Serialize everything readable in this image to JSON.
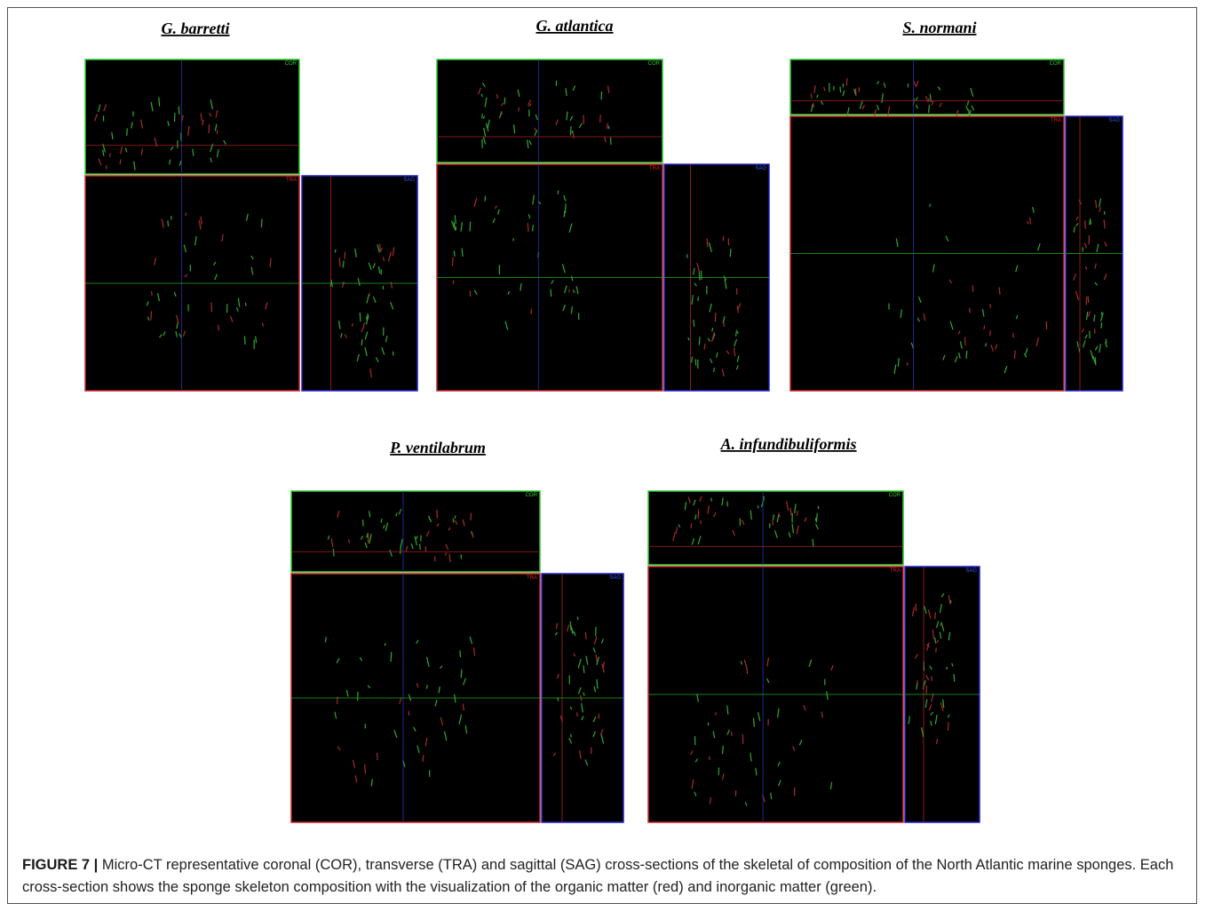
{
  "panels": [
    {
      "title": "G. barretti",
      "views": [
        "COR",
        "TRA",
        "SAG"
      ]
    },
    {
      "title": "G. atlantica",
      "views": [
        "COR",
        "TRA",
        "SAG"
      ]
    },
    {
      "title": "S. normani",
      "views": [
        "COR",
        "TRA",
        "SAG"
      ]
    },
    {
      "title": "P. ventilabrum",
      "views": [
        "COR",
        "TRA",
        "SAG"
      ]
    },
    {
      "title": "A. infundibuliformis",
      "views": [
        "COR",
        "TRA",
        "SAG"
      ]
    }
  ],
  "caption": {
    "label": "FIGURE 7 |",
    "text": "Micro-CT representative coronal (COR), transverse (TRA) and sagittal (SAG) cross-sections of the skeletal of composition of the North Atlantic marine sponges. Each cross-section shows the sponge skeleton composition with the visualization of the organic matter (red) and inorganic matter (green)."
  }
}
